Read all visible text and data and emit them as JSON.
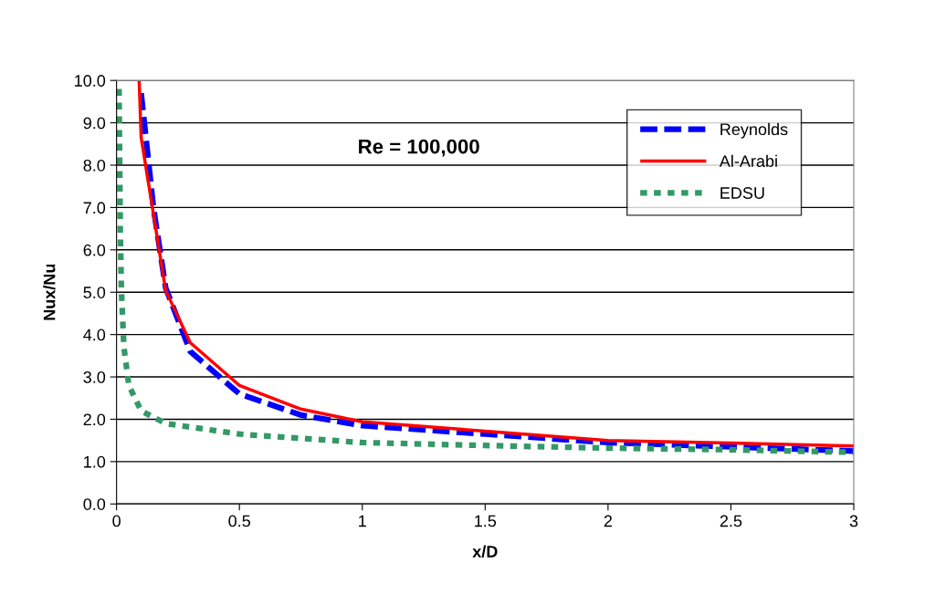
{
  "chart_data": {
    "type": "line",
    "xlabel": "x/D",
    "ylabel": "Nux/Nu",
    "xlim": [
      0,
      3
    ],
    "ylim": [
      0,
      10
    ],
    "xticks": [
      0,
      0.5,
      1,
      1.5,
      2,
      2.5,
      3
    ],
    "yticks": [
      {
        "value": 0,
        "label": "0.0"
      },
      {
        "value": 1,
        "label": "1.0"
      },
      {
        "value": 2,
        "label": "2.0"
      },
      {
        "value": 3,
        "label": "3.0"
      },
      {
        "value": 4,
        "label": "4.0"
      },
      {
        "value": 5,
        "label": "5.0"
      },
      {
        "value": 6,
        "label": "6.0"
      },
      {
        "value": 7,
        "label": "7.0"
      },
      {
        "value": 8,
        "label": "8.0"
      },
      {
        "value": 9,
        "label": "9.0"
      },
      {
        "value": 10,
        "label": "10.0"
      }
    ],
    "grid": "y",
    "legend": "top right",
    "marker": "none",
    "annotations": [
      "Re = 100,000"
    ],
    "series": [
      {
        "name": "Reynolds",
        "color": "#0000ff",
        "line_style": "dashed",
        "x": [
          0.1,
          0.15,
          0.2,
          0.3,
          0.5,
          0.75,
          1,
          1.5,
          2,
          2.5,
          3
        ],
        "values": [
          9.7,
          7.0,
          5.1,
          3.6,
          2.6,
          2.1,
          1.85,
          1.65,
          1.45,
          1.35,
          1.25
        ]
      },
      {
        "name": "Al-Arabi",
        "color": "#ff0000",
        "line_style": "solid",
        "x": [
          0.092,
          0.1,
          0.2,
          0.3,
          0.5,
          0.75,
          1,
          1.5,
          2,
          2.5,
          3
        ],
        "values": [
          10.0,
          8.66,
          5.04,
          3.81,
          2.8,
          2.24,
          1.94,
          1.72,
          1.5,
          1.44,
          1.37
        ]
      },
      {
        "name": "EDSU",
        "color": "#339966",
        "line_style": "dotted",
        "x": [
          0.01,
          0.015,
          0.02,
          0.03,
          0.05,
          0.1,
          0.2,
          0.5,
          1,
          1.5,
          2,
          2.5,
          3
        ],
        "values": [
          9.8,
          6.5,
          5.0,
          3.7,
          2.8,
          2.2,
          1.9,
          1.65,
          1.45,
          1.38,
          1.32,
          1.28,
          1.22
        ]
      }
    ]
  }
}
